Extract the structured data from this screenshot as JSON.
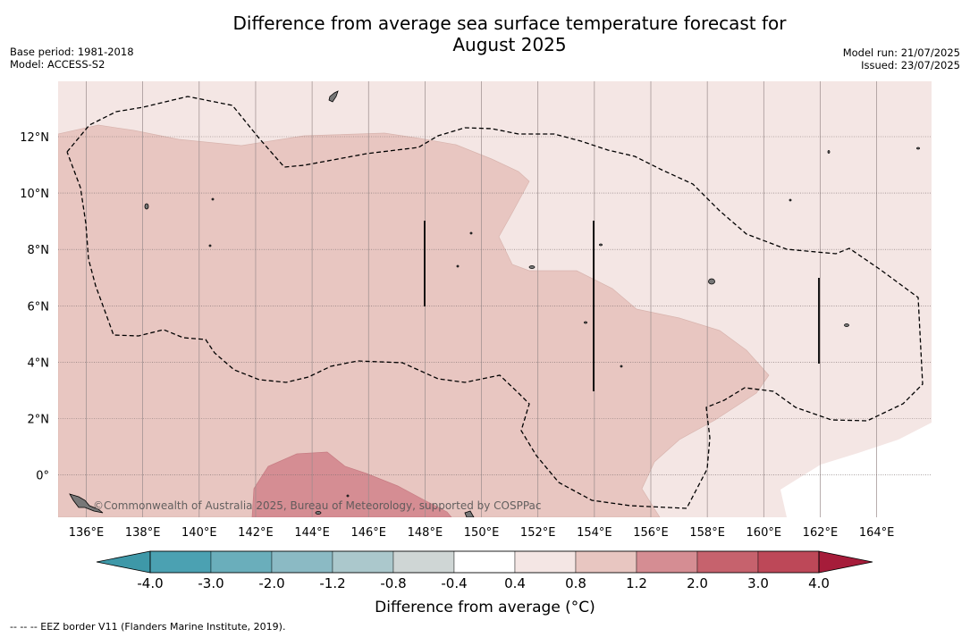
{
  "title_line1": "Difference from average sea surface temperature forecast for",
  "title_line2": "August 2025",
  "base_period": "Base period: 1981-2018",
  "model": "Model: ACCESS-S2",
  "model_run": "Model run: 21/07/2025",
  "issued": "Issued: 23/07/2025",
  "copyright": "©Commonwealth of Australia 2025, Bureau of Meteorology, supported by COSPPac",
  "lat_labels": [
    "12°N",
    "10°N",
    "8°N",
    "6°N",
    "4°N",
    "2°N",
    "0°"
  ],
  "lon_labels": [
    "136°E",
    "138°E",
    "140°E",
    "142°E",
    "144°E",
    "146°E",
    "148°E",
    "150°E",
    "152°E",
    "154°E",
    "156°E",
    "158°E",
    "160°E",
    "162°E",
    "164°E"
  ],
  "colorbar": {
    "ticks": [
      "-4.0",
      "-3.0",
      "-2.0",
      "-1.2",
      "-0.8",
      "-0.4",
      "0.4",
      "0.8",
      "1.2",
      "2.0",
      "3.0",
      "4.0"
    ],
    "colors": [
      "#3e98a8",
      "#4ba1b2",
      "#6aaebb",
      "#8bbac4",
      "#abc8cc",
      "#cfd6d5",
      "#ffffff",
      "#f4e6e4",
      "#e8c6c1",
      "#d58d93",
      "#c6626d",
      "#bd4858",
      "#a61c3a"
    ],
    "title": "Difference from average (°C)"
  },
  "footnote": "--  --  -- EEZ border V11 (Flanders Marine Institute, 2019)."
}
